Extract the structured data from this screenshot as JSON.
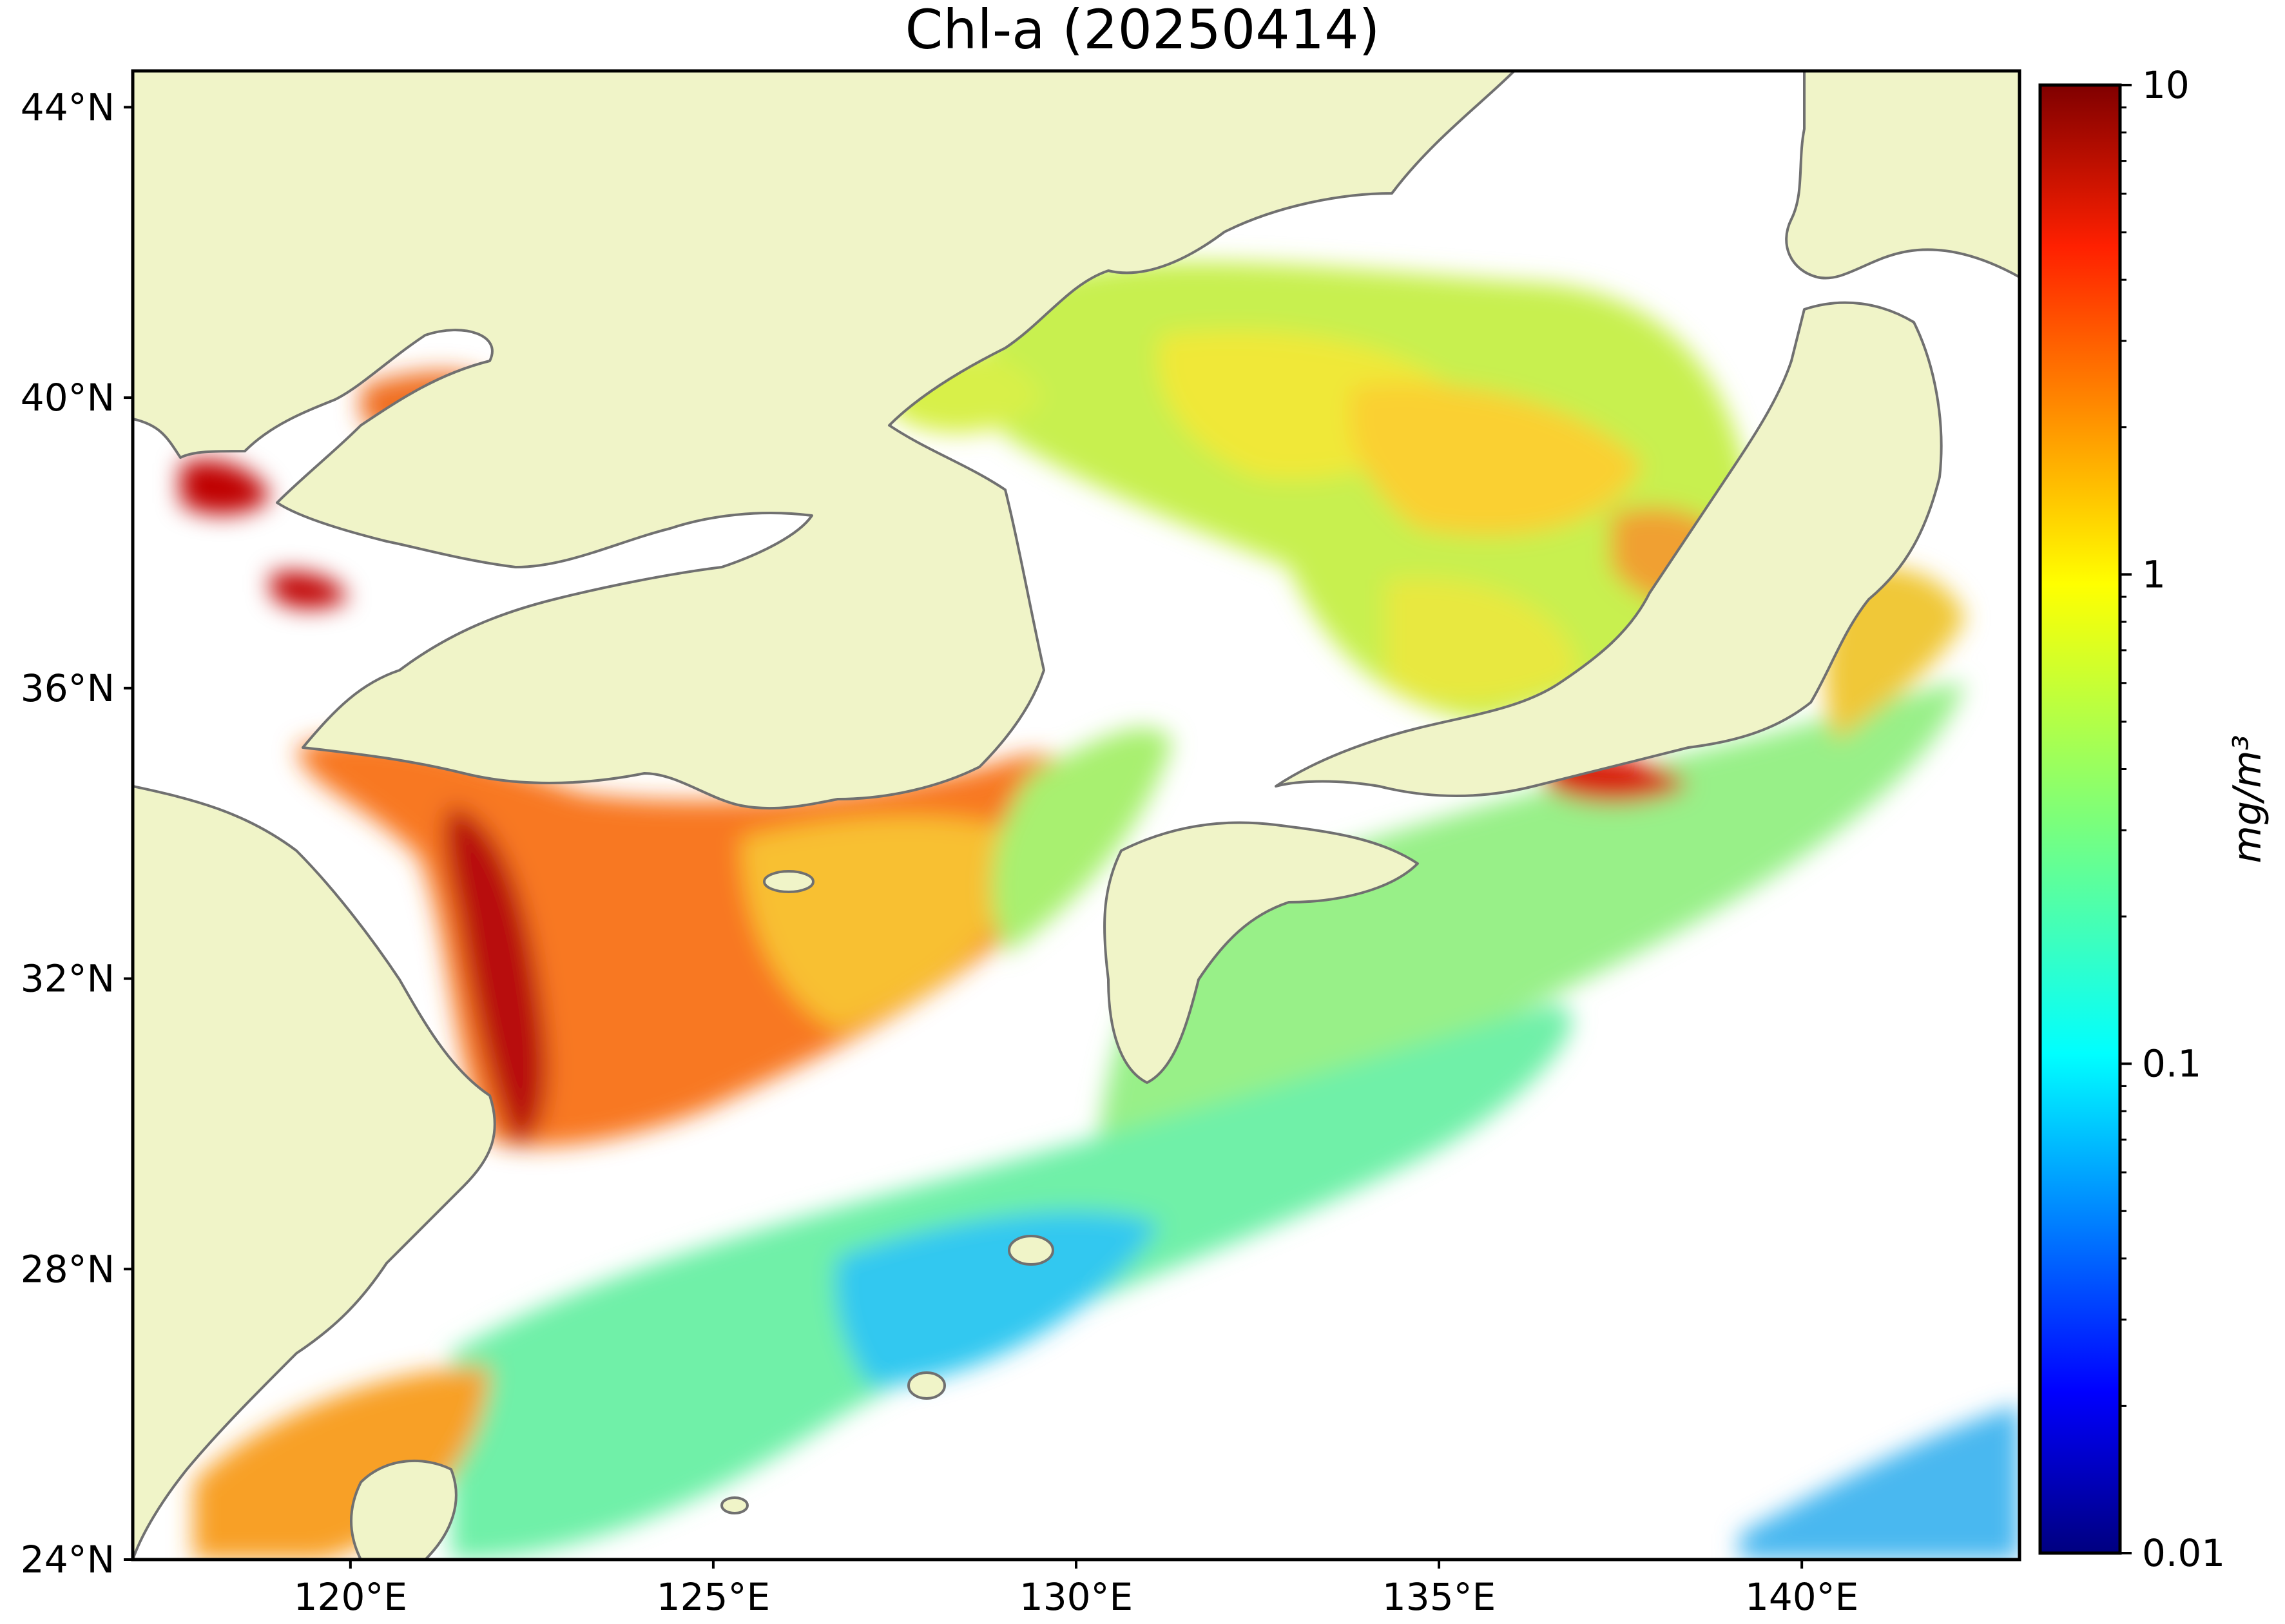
{
  "title": "Chl-a (20250414)",
  "map": {
    "lon_range": [
      117,
      143
    ],
    "lat_range": [
      24,
      44.5
    ],
    "lon_ticks": [
      {
        "value": 120,
        "label": "120°E"
      },
      {
        "value": 125,
        "label": "125°E"
      },
      {
        "value": 130,
        "label": "130°E"
      },
      {
        "value": 135,
        "label": "135°E"
      },
      {
        "value": 140,
        "label": "140°E"
      }
    ],
    "lat_ticks": [
      {
        "value": 44,
        "label": "44°N"
      },
      {
        "value": 40,
        "label": "40°N"
      },
      {
        "value": 36,
        "label": "36°N"
      },
      {
        "value": 32,
        "label": "32°N"
      },
      {
        "value": 28,
        "label": "28°N"
      },
      {
        "value": 24,
        "label": "24°N"
      }
    ],
    "land_color": "#f0f4c8",
    "coast_color": "#707070",
    "no_data_color": "#ffffff"
  },
  "colorbar": {
    "scale": "log",
    "colormap": "jet",
    "range": [
      0.01,
      10
    ],
    "ticks": [
      {
        "value": 10,
        "label": "10"
      },
      {
        "value": 1,
        "label": "1"
      },
      {
        "value": 0.1,
        "label": "0.1"
      },
      {
        "value": 0.01,
        "label": "0.01"
      }
    ],
    "unit": "mg/m³"
  }
}
